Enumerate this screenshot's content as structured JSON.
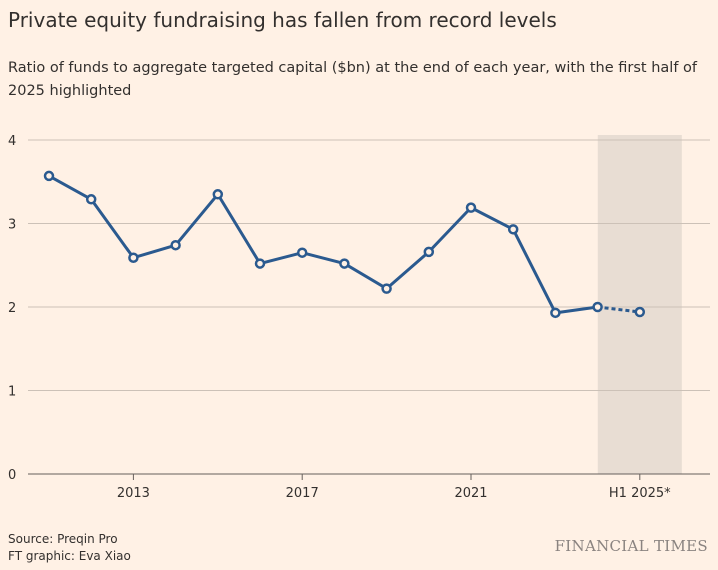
{
  "title": "Private equity fundraising has fallen from record levels",
  "subtitle": "Ratio of funds to aggregate targeted capital ($bn) at the end of each year, with the first half of 2025 highlighted",
  "source": "Source: Preqin Pro",
  "credit": "FT graphic: Eva Xiao",
  "brand": "FINANCIAL TIMES",
  "colors": {
    "line": "#2b5a8f",
    "highlight": "#e8ddd3",
    "grid": "#ccc1b7",
    "background": "#fff1e5"
  },
  "chart_data": {
    "type": "line",
    "x": [
      "2011",
      "2012",
      "2013",
      "2014",
      "2015",
      "2016",
      "2017",
      "2018",
      "2019",
      "2020",
      "2021",
      "2022",
      "2023",
      "2024",
      "H1 2025*"
    ],
    "x_tick_labels": [
      "2013",
      "2017",
      "2021",
      "H1 2025*"
    ],
    "values": [
      3.57,
      3.29,
      2.59,
      2.74,
      3.35,
      2.52,
      2.65,
      2.52,
      2.22,
      2.66,
      3.19,
      2.93,
      1.93,
      2.0,
      1.94
    ],
    "dashed_segment": [
      "2024",
      "H1 2025*"
    ],
    "highlighted": "H1 2025*",
    "ylim": [
      0,
      4
    ],
    "yticks": [
      0,
      1,
      2,
      3,
      4
    ],
    "grid": true,
    "xlabel": "",
    "ylabel": ""
  }
}
